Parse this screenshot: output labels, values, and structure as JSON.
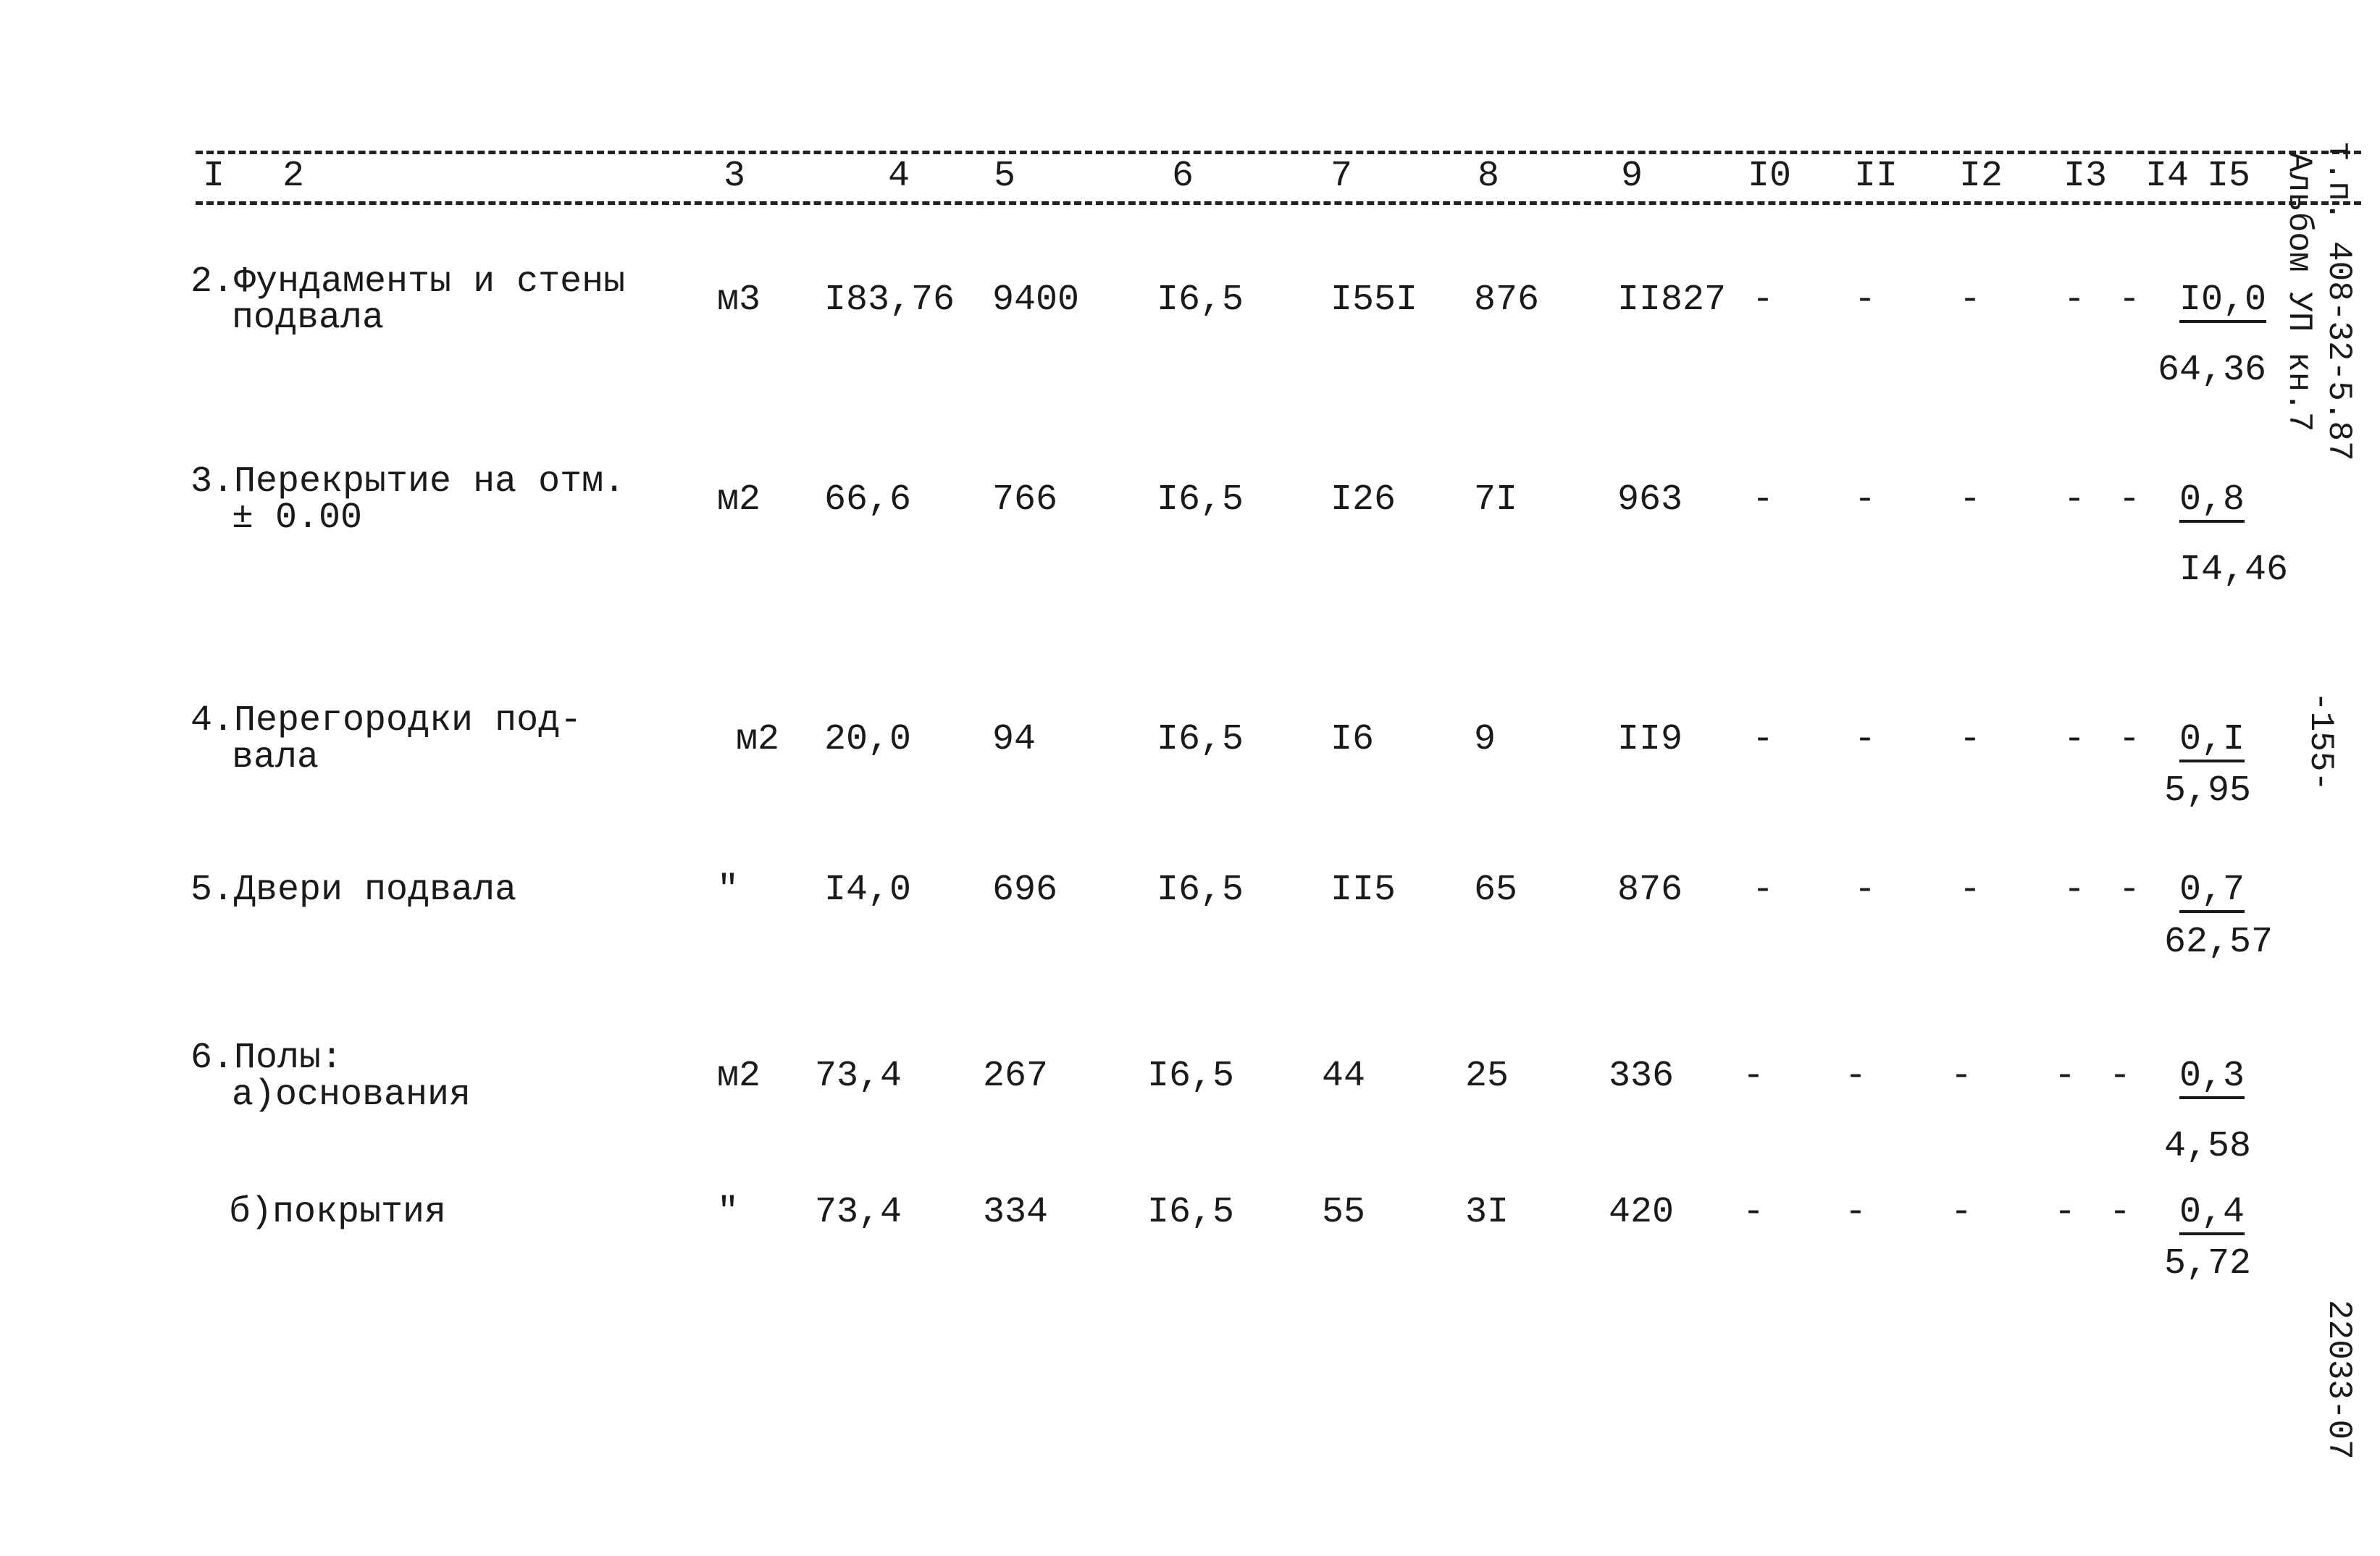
{
  "header": [
    "I",
    "2",
    "3",
    "4",
    "5",
    "6",
    "7",
    "8",
    "9",
    "I0",
    "II",
    "I2",
    "I3",
    "I4",
    "I5"
  ],
  "rows": [
    {
      "label": [
        "2.Фундаменты и стены",
        "подвала"
      ],
      "unit": "м3",
      "values": [
        "I83,76",
        "9400",
        "I6,5",
        "I55I",
        "876",
        "II827"
      ],
      "dashes": [
        "-",
        "-",
        "-",
        "-",
        "-"
      ],
      "fraction": {
        "numerator": "I0,0",
        "denominator": "64,36"
      }
    },
    {
      "label": [
        "3.Перекрытие на отм.",
        "± 0.00"
      ],
      "unit": "м2",
      "values": [
        "66,6",
        "766",
        "I6,5",
        "I26",
        "7I",
        "963"
      ],
      "dashes": [
        "-",
        "-",
        "-",
        "-",
        "-"
      ],
      "fraction": {
        "numerator": "0,8",
        "denominator": "I4,46"
      }
    },
    {
      "label": [
        "4.Перегородки под-",
        "вала"
      ],
      "unit": "м2",
      "values": [
        "20,0",
        "94",
        "I6,5",
        "I6",
        "9",
        "II9"
      ],
      "dashes": [
        "-",
        "-",
        "-",
        "-",
        "-"
      ],
      "fraction": {
        "numerator": "0,I",
        "denominator": "5,95"
      }
    },
    {
      "label": [
        "5.Двери подвала"
      ],
      "unit": "\"",
      "values": [
        "I4,0",
        "696",
        "I6,5",
        "II5",
        "65",
        "876"
      ],
      "dashes": [
        "-",
        "-",
        "-",
        "-",
        "-"
      ],
      "fraction": {
        "numerator": "0,7",
        "denominator": "62,57"
      }
    },
    {
      "label": [
        "6.Полы:",
        "а)основания"
      ],
      "unit": "м2",
      "values": [
        "73,4",
        "267",
        "I6,5",
        "44",
        "25",
        "336"
      ],
      "dashes": [
        "-",
        "-",
        "-",
        "-",
        "-"
      ],
      "fraction": {
        "numerator": "0,3",
        "denominator": "4,58"
      }
    },
    {
      "label": [
        "б)покрытия"
      ],
      "unit": "\"",
      "values": [
        "73,4",
        "334",
        "I6,5",
        "55",
        "3I",
        "420"
      ],
      "dashes": [
        "-",
        "-",
        "-",
        "-",
        "-"
      ],
      "fraction": {
        "numerator": "0,4",
        "denominator": "5,72"
      }
    }
  ],
  "margin": {
    "code": "т.п. 408-32-5.87",
    "album": "Альбом УП кн.7",
    "page": "-155-",
    "stamp": "22033-07"
  }
}
